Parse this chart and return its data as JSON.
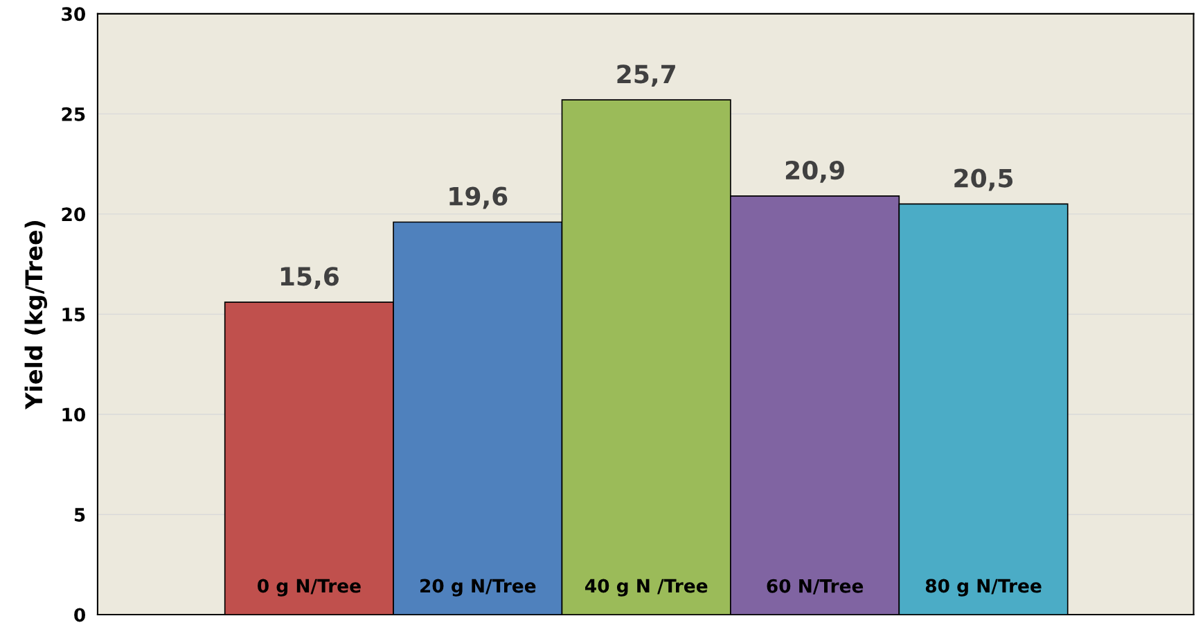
{
  "chart_data": {
    "type": "bar",
    "ylabel": "Yield (kg/Tree)",
    "categories": [
      "0 g N/Tree",
      "20 g N/Tree",
      "40 g N /Tree",
      "60 N/Tree",
      "80 g N/Tree"
    ],
    "values": [
      15.6,
      19.6,
      25.7,
      20.9,
      20.5
    ],
    "value_labels": [
      "15,6",
      "19,6",
      "25,7",
      "20,9",
      "20,5"
    ],
    "colors": [
      "#c0504d",
      "#4f81bd",
      "#9bbb59",
      "#8064a2",
      "#4bacc6"
    ],
    "ylim": [
      0,
      30
    ],
    "yticks": [
      0,
      5,
      10,
      15,
      20,
      25,
      30
    ],
    "grid": "y"
  }
}
